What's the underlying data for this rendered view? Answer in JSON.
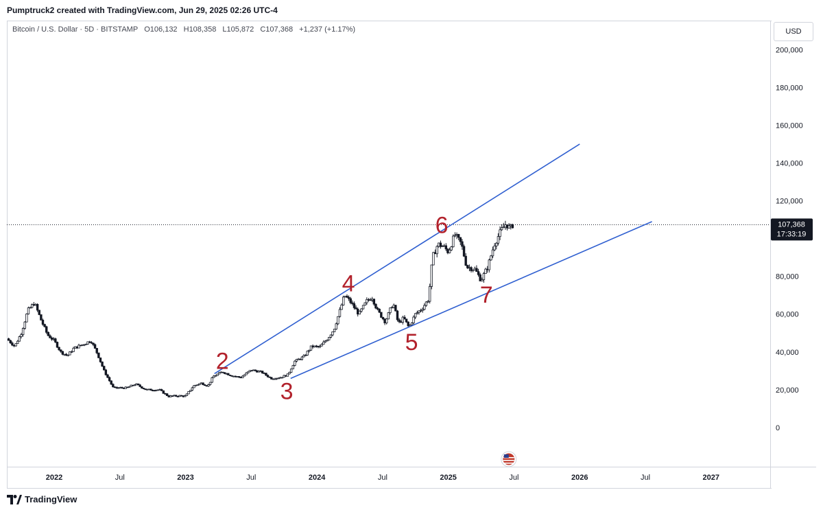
{
  "header": {
    "caption": "Pumptruck2 created with TradingView.com, Jun 29, 2025 02:26 UTC-4"
  },
  "symbol": {
    "name": "Bitcoin / U.S. Dollar · 5D · BITSTAMP",
    "open": "O106,132",
    "high": "H108,358",
    "low": "L105,872",
    "close": "C107,368",
    "change": "+1,237 (+1.17%)"
  },
  "currency": "USD",
  "price_tag": {
    "price": "107,368",
    "countdown": "17:33:19"
  },
  "footer": {
    "brand": "TradingView"
  },
  "colors": {
    "up": "#131722",
    "down": "#131722",
    "trend": "#2f5fd0",
    "label": "#b2222c"
  },
  "chart_data": {
    "type": "candlestick",
    "x_ticks": [
      "2022",
      "Jul",
      "2023",
      "Jul",
      "2024",
      "Jul",
      "2025",
      "Jul",
      "2026",
      "Jul",
      "2027"
    ],
    "x_tick_dates": [
      2022.0,
      2022.5,
      2023.0,
      2023.5,
      2024.0,
      2024.5,
      2025.0,
      2025.5,
      2026.0,
      2026.5,
      2027.0
    ],
    "y_ticks": [
      0,
      20000,
      40000,
      60000,
      80000,
      100000,
      120000,
      140000,
      160000,
      180000,
      200000
    ],
    "y_tick_labels": [
      "0",
      "20,000",
      "40,000",
      "60,000",
      "80,000",
      "",
      "120,000",
      "140,000",
      "160,000",
      "180,000",
      "200,000"
    ],
    "ylim": [
      -20000,
      215000
    ],
    "xlim": [
      2021.64,
      2027.45
    ],
    "last_price": 107368,
    "price_path": [
      [
        2021.64,
        47000
      ],
      [
        2021.7,
        43000
      ],
      [
        2021.75,
        50000
      ],
      [
        2021.8,
        62000
      ],
      [
        2021.85,
        66000
      ],
      [
        2021.9,
        57000
      ],
      [
        2021.95,
        49000
      ],
      [
        2022.0,
        46000
      ],
      [
        2022.05,
        40000
      ],
      [
        2022.1,
        38000
      ],
      [
        2022.15,
        42000
      ],
      [
        2022.22,
        44000
      ],
      [
        2022.28,
        46000
      ],
      [
        2022.33,
        39000
      ],
      [
        2022.38,
        30000
      ],
      [
        2022.45,
        21000
      ],
      [
        2022.55,
        21000
      ],
      [
        2022.62,
        23000
      ],
      [
        2022.7,
        20000
      ],
      [
        2022.8,
        20000
      ],
      [
        2022.87,
        16500
      ],
      [
        2022.95,
        16800
      ],
      [
        2023.0,
        16600
      ],
      [
        2023.06,
        22000
      ],
      [
        2023.12,
        23500
      ],
      [
        2023.17,
        22000
      ],
      [
        2023.21,
        27000
      ],
      [
        2023.28,
        29500
      ],
      [
        2023.35,
        27500
      ],
      [
        2023.42,
        26500
      ],
      [
        2023.5,
        30500
      ],
      [
        2023.58,
        29300
      ],
      [
        2023.65,
        26000
      ],
      [
        2023.72,
        26500
      ],
      [
        2023.78,
        28000
      ],
      [
        2023.83,
        35000
      ],
      [
        2023.9,
        37500
      ],
      [
        2023.96,
        43000
      ],
      [
        2024.02,
        42500
      ],
      [
        2024.08,
        47000
      ],
      [
        2024.13,
        52000
      ],
      [
        2024.18,
        63000
      ],
      [
        2024.21,
        70000
      ],
      [
        2024.25,
        67000
      ],
      [
        2024.32,
        60000
      ],
      [
        2024.38,
        67000
      ],
      [
        2024.42,
        69000
      ],
      [
        2024.46,
        62000
      ],
      [
        2024.52,
        56000
      ],
      [
        2024.58,
        66000
      ],
      [
        2024.62,
        55000
      ],
      [
        2024.66,
        58000
      ],
      [
        2024.7,
        53000
      ],
      [
        2024.75,
        60000
      ],
      [
        2024.8,
        63000
      ],
      [
        2024.85,
        68000
      ],
      [
        2024.88,
        90000
      ],
      [
        2024.92,
        97000
      ],
      [
        2024.96,
        96000
      ],
      [
        2025.0,
        93000
      ],
      [
        2025.05,
        102000
      ],
      [
        2025.1,
        97000
      ],
      [
        2025.14,
        85000
      ],
      [
        2025.2,
        84000
      ],
      [
        2025.25,
        78000
      ],
      [
        2025.3,
        85000
      ],
      [
        2025.35,
        97000
      ],
      [
        2025.4,
        104000
      ],
      [
        2025.44,
        108000
      ],
      [
        2025.47,
        105000
      ],
      [
        2025.49,
        107368
      ]
    ],
    "trend_lines": [
      {
        "from": [
          2023.22,
          28500
        ],
        "to": [
          2026.0,
          150000
        ]
      },
      {
        "from": [
          2023.8,
          26000
        ],
        "to": [
          2026.55,
          109000
        ]
      }
    ],
    "wave_labels": [
      {
        "text": "2",
        "x": 2023.28,
        "y": 31000
      },
      {
        "text": "3",
        "x": 2023.77,
        "y": 15000
      },
      {
        "text": "4",
        "x": 2024.24,
        "y": 72000
      },
      {
        "text": "5",
        "x": 2024.72,
        "y": 41000
      },
      {
        "text": "6",
        "x": 2024.95,
        "y": 103000
      },
      {
        "text": "7",
        "x": 2025.29,
        "y": 66000
      }
    ]
  }
}
